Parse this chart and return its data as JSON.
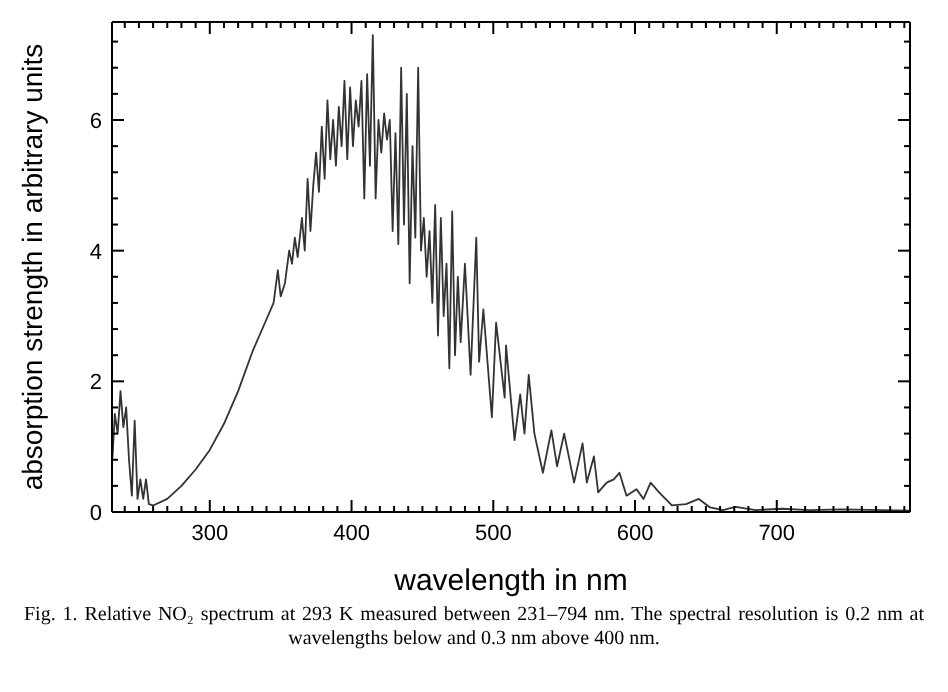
{
  "chart_data": {
    "type": "line",
    "xlabel": "wavelength in nm",
    "ylabel": "absorption strength in arbitrary units",
    "annotations": [
      "Fig. 1. Relative NO₂ spectrum at 293 K measured between 231–794 nm. The spectral resolution is 0.2 nm at wavelengths below and 0.3 nm above 400 nm."
    ],
    "xlim": [
      231,
      794
    ],
    "ylim": [
      0,
      7.5
    ],
    "xticks": [
      {
        "value": 240,
        "label": null
      },
      {
        "value": 250,
        "label": null
      },
      {
        "value": 260,
        "label": null
      },
      {
        "value": 270,
        "label": null
      },
      {
        "value": 280,
        "label": null
      },
      {
        "value": 290,
        "label": null
      },
      300,
      {
        "value": 310,
        "label": null
      },
      {
        "value": 320,
        "label": null
      },
      {
        "value": 330,
        "label": null
      },
      {
        "value": 340,
        "label": null
      },
      {
        "value": 350,
        "label": null
      },
      {
        "value": 360,
        "label": null
      },
      {
        "value": 370,
        "label": null
      },
      {
        "value": 380,
        "label": null
      },
      {
        "value": 390,
        "label": null
      },
      400,
      {
        "value": 410,
        "label": null
      },
      {
        "value": 420,
        "label": null
      },
      {
        "value": 430,
        "label": null
      },
      {
        "value": 440,
        "label": null
      },
      {
        "value": 450,
        "label": null
      },
      {
        "value": 460,
        "label": null
      },
      {
        "value": 470,
        "label": null
      },
      {
        "value": 480,
        "label": null
      },
      {
        "value": 490,
        "label": null
      },
      500,
      {
        "value": 510,
        "label": null
      },
      {
        "value": 520,
        "label": null
      },
      {
        "value": 530,
        "label": null
      },
      {
        "value": 540,
        "label": null
      },
      {
        "value": 550,
        "label": null
      },
      {
        "value": 560,
        "label": null
      },
      {
        "value": 570,
        "label": null
      },
      {
        "value": 580,
        "label": null
      },
      {
        "value": 590,
        "label": null
      },
      600,
      {
        "value": 610,
        "label": null
      },
      {
        "value": 620,
        "label": null
      },
      {
        "value": 630,
        "label": null
      },
      {
        "value": 640,
        "label": null
      },
      {
        "value": 650,
        "label": null
      },
      {
        "value": 660,
        "label": null
      },
      {
        "value": 670,
        "label": null
      },
      {
        "value": 680,
        "label": null
      },
      {
        "value": 690,
        "label": null
      },
      700,
      {
        "value": 710,
        "label": null
      },
      {
        "value": 720,
        "label": null
      },
      {
        "value": 730,
        "label": null
      },
      {
        "value": 740,
        "label": null
      },
      {
        "value": 750,
        "label": null
      },
      {
        "value": 760,
        "label": null
      },
      {
        "value": 770,
        "label": null
      },
      {
        "value": 780,
        "label": null
      },
      {
        "value": 790,
        "label": null
      }
    ],
    "yticks": [
      0,
      {
        "value": 0.4,
        "label": null
      },
      {
        "value": 0.8,
        "label": null
      },
      {
        "value": 1.2,
        "label": null
      },
      {
        "value": 1.6,
        "label": null
      },
      2,
      {
        "value": 2.4,
        "label": null
      },
      {
        "value": 2.8,
        "label": null
      },
      {
        "value": 3.2,
        "label": null
      },
      {
        "value": 3.6,
        "label": null
      },
      4,
      {
        "value": 4.4,
        "label": null
      },
      {
        "value": 4.8,
        "label": null
      },
      {
        "value": 5.2,
        "label": null
      },
      {
        "value": 5.6,
        "label": null
      },
      6,
      {
        "value": 6.4,
        "label": null
      },
      {
        "value": 6.8,
        "label": null
      },
      {
        "value": 7.2,
        "label": null
      }
    ],
    "marker": "none",
    "line_style": "solid",
    "x": [
      231,
      233,
      235,
      237,
      239,
      241,
      243,
      245,
      247,
      249,
      251,
      253,
      255,
      257,
      260,
      270,
      280,
      290,
      300,
      310,
      320,
      330,
      340,
      345,
      348,
      350,
      353,
      356,
      358,
      360,
      362,
      365,
      367,
      369,
      371,
      373,
      375,
      377,
      379,
      381,
      383,
      385,
      387,
      389,
      391,
      393,
      395,
      397,
      399,
      401,
      403,
      405,
      407,
      409,
      411,
      413,
      415,
      417,
      419,
      421,
      423,
      425,
      427,
      429,
      431,
      433,
      435,
      437,
      439,
      441,
      443,
      445,
      447,
      449,
      451,
      453,
      455,
      457,
      459,
      461,
      463,
      465,
      467,
      469,
      471,
      473,
      475,
      477,
      480,
      484,
      488,
      490,
      493,
      499,
      502,
      508,
      509,
      515,
      519,
      522,
      525,
      529,
      535,
      541,
      545,
      550,
      557,
      563,
      566,
      571,
      574,
      580,
      585,
      589,
      594,
      601,
      606,
      611,
      617,
      626,
      636,
      645,
      653,
      662,
      671,
      685,
      704,
      723,
      746,
      794
    ],
    "series": [
      {
        "color": "#333333",
        "values": [
          0.7,
          1.5,
          1.2,
          1.85,
          1.3,
          1.6,
          0.8,
          0.25,
          1.4,
          0.2,
          0.5,
          0.2,
          0.5,
          0.12,
          0.1,
          0.2,
          0.4,
          0.65,
          0.95,
          1.35,
          1.85,
          2.45,
          2.95,
          3.2,
          3.7,
          3.3,
          3.5,
          4.0,
          3.8,
          4.2,
          3.9,
          4.5,
          4.0,
          5.1,
          4.3,
          5.0,
          5.5,
          4.9,
          5.9,
          5.1,
          6.3,
          5.4,
          6.0,
          5.3,
          6.2,
          5.6,
          6.6,
          5.4,
          6.5,
          5.6,
          6.3,
          5.9,
          6.6,
          4.8,
          6.7,
          5.3,
          7.3,
          4.8,
          6.0,
          5.5,
          6.1,
          5.7,
          6.0,
          4.3,
          5.8,
          4.1,
          6.8,
          4.4,
          6.4,
          3.5,
          5.6,
          4.2,
          6.8,
          4.0,
          4.5,
          3.6,
          4.3,
          3.2,
          4.7,
          2.7,
          4.5,
          3.0,
          3.8,
          2.2,
          4.6,
          2.4,
          3.6,
          2.6,
          3.8,
          2.1,
          4.2,
          2.3,
          3.1,
          1.45,
          2.9,
          1.75,
          2.55,
          1.1,
          1.8,
          1.2,
          2.1,
          1.2,
          0.6,
          1.25,
          0.7,
          1.2,
          0.45,
          1.05,
          0.45,
          0.85,
          0.3,
          0.45,
          0.5,
          0.6,
          0.25,
          0.35,
          0.2,
          0.45,
          0.3,
          0.1,
          0.12,
          0.2,
          0.07,
          0.03,
          0.08,
          0.03,
          0.05,
          0.03,
          0.04,
          0.02
        ]
      }
    ]
  }
}
